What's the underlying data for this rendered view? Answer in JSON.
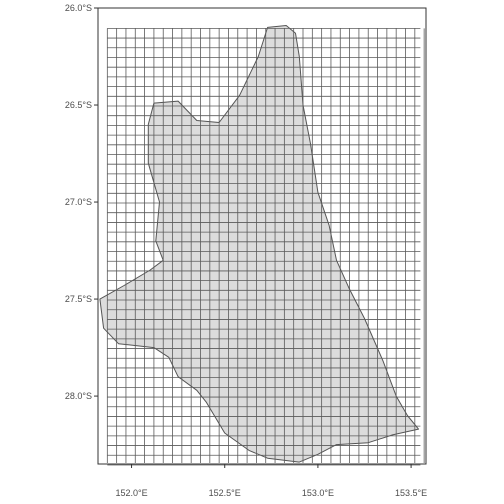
{
  "map": {
    "type": "grid-overlay-region-map",
    "colors": {
      "panel_border": "#333333",
      "region_fill": "#dcdcdc",
      "region_stroke": "#555555",
      "grid_line": "#5a5a5a",
      "background": "#ffffff"
    },
    "axes": {
      "x": {
        "ticks": [
          152.0,
          152.5,
          153.0,
          153.5
        ],
        "tick_labels": [
          "152.0°E",
          "152.5°E",
          "153.0°E",
          "153.5°E"
        ],
        "range": [
          151.82,
          153.58
        ]
      },
      "y": {
        "ticks": [
          -26.0,
          -26.5,
          -27.0,
          -27.5,
          -28.0
        ],
        "tick_labels": [
          "26.0°S",
          "26.5°S",
          "27.0°S",
          "27.5°S",
          "28.0°S"
        ],
        "range": [
          -28.35,
          -26.0
        ]
      }
    },
    "grid": {
      "lon_min": 151.87,
      "lon_max": 153.55,
      "lat_min": -28.345,
      "lat_max": -26.105,
      "cell_lon": 0.05,
      "cell_lat": 0.05
    },
    "region": {
      "outline": [
        [
          152.73,
          -26.1
        ],
        [
          152.83,
          -26.09
        ],
        [
          152.88,
          -26.13
        ],
        [
          152.9,
          -26.25
        ],
        [
          152.92,
          -26.5
        ],
        [
          152.96,
          -26.7
        ],
        [
          153.0,
          -26.95
        ],
        [
          153.06,
          -27.12
        ],
        [
          153.1,
          -27.3
        ],
        [
          153.17,
          -27.45
        ],
        [
          153.25,
          -27.6
        ],
        [
          153.35,
          -27.82
        ],
        [
          153.42,
          -28.0
        ],
        [
          153.48,
          -28.1
        ],
        [
          153.54,
          -28.17
        ],
        [
          153.4,
          -28.2
        ],
        [
          153.27,
          -28.24
        ],
        [
          153.1,
          -28.25
        ],
        [
          153.0,
          -28.3
        ],
        [
          152.9,
          -28.34
        ],
        [
          152.73,
          -28.32
        ],
        [
          152.63,
          -28.28
        ],
        [
          152.5,
          -28.19
        ],
        [
          152.4,
          -28.03
        ],
        [
          152.35,
          -27.97
        ],
        [
          152.25,
          -27.9
        ],
        [
          152.2,
          -27.8
        ],
        [
          152.12,
          -27.75
        ],
        [
          151.93,
          -27.73
        ],
        [
          151.85,
          -27.65
        ],
        [
          151.83,
          -27.5
        ],
        [
          151.96,
          -27.43
        ],
        [
          152.1,
          -27.35
        ],
        [
          152.17,
          -27.3
        ],
        [
          152.13,
          -27.2
        ],
        [
          152.15,
          -27.0
        ],
        [
          152.09,
          -26.8
        ],
        [
          152.09,
          -26.6
        ],
        [
          152.12,
          -26.49
        ],
        [
          152.25,
          -26.48
        ],
        [
          152.35,
          -26.58
        ],
        [
          152.47,
          -26.59
        ],
        [
          152.58,
          -26.45
        ],
        [
          152.68,
          -26.25
        ],
        [
          152.73,
          -26.1
        ]
      ]
    }
  }
}
